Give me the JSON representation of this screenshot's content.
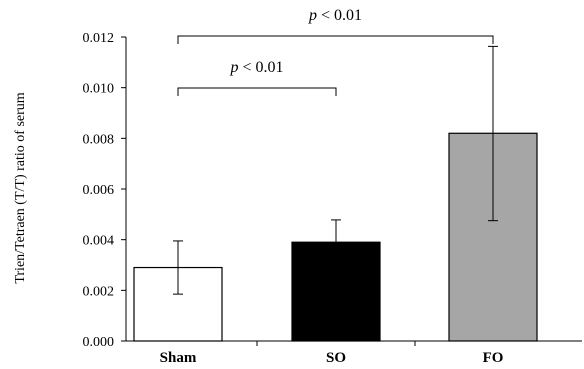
{
  "chart_data": {
    "type": "bar",
    "title": "",
    "xlabel": "",
    "ylabel": "Trien/Tetraen (T/T) ratio of serum",
    "ylim": [
      0,
      0.012
    ],
    "yticks": [
      "0.000",
      "0.002",
      "0.004",
      "0.006",
      "0.008",
      "0.010",
      "0.012"
    ],
    "categories": [
      "Sham",
      "SO",
      "FO"
    ],
    "values": [
      0.0029,
      0.0039,
      0.0082
    ],
    "error_low": [
      0.00185,
      0.00305,
      0.00475
    ],
    "error_high": [
      0.00395,
      0.00478,
      0.01163
    ],
    "bar_colors": [
      "#ffffff",
      "#000000",
      "#a6a6a6"
    ],
    "grid": false,
    "annotations": [
      {
        "text_p": "p",
        "text_rest": " < 0.01",
        "from": "Sham",
        "to": "FO"
      },
      {
        "text_p": "p",
        "text_rest": " < 0.01",
        "from": "Sham",
        "to": "SO"
      }
    ]
  }
}
